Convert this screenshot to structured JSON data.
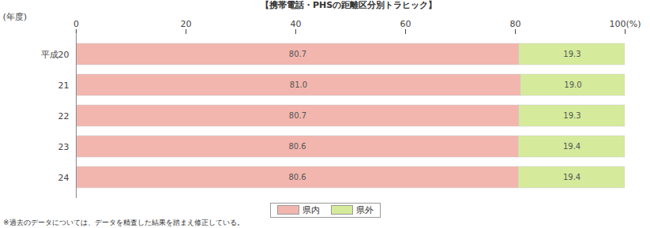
{
  "chart_data": {
    "type": "bar",
    "orientation": "horizontal",
    "stacked": true,
    "data_labels": true,
    "grid": false,
    "title": "【携帯電話・PHSの距離区分別トラヒック】",
    "y_label": "(年度)",
    "categories": [
      "平成20",
      "21",
      "22",
      "23",
      "24"
    ],
    "series": [
      {
        "name": "県内",
        "color": "#f2b6ae",
        "values": [
          80.7,
          81.0,
          80.7,
          80.6,
          80.6
        ],
        "value_labels": [
          "80.7",
          "81.0",
          "80.7",
          "80.6",
          "80.6"
        ]
      },
      {
        "name": "県外",
        "color": "#d5eb9b",
        "values": [
          19.3,
          19.0,
          19.3,
          19.4,
          19.4
        ],
        "value_labels": [
          "19.3",
          "19.0",
          "19.3",
          "19.4",
          "19.4"
        ]
      }
    ],
    "xlim": [
      0,
      100
    ],
    "xticks": [
      0,
      20,
      40,
      60,
      80,
      {
        "value": 100,
        "label": "100(%)"
      }
    ],
    "annotations": [
      "※過去のデータについては、データを精査した結果を踏まえ修正している。"
    ]
  }
}
